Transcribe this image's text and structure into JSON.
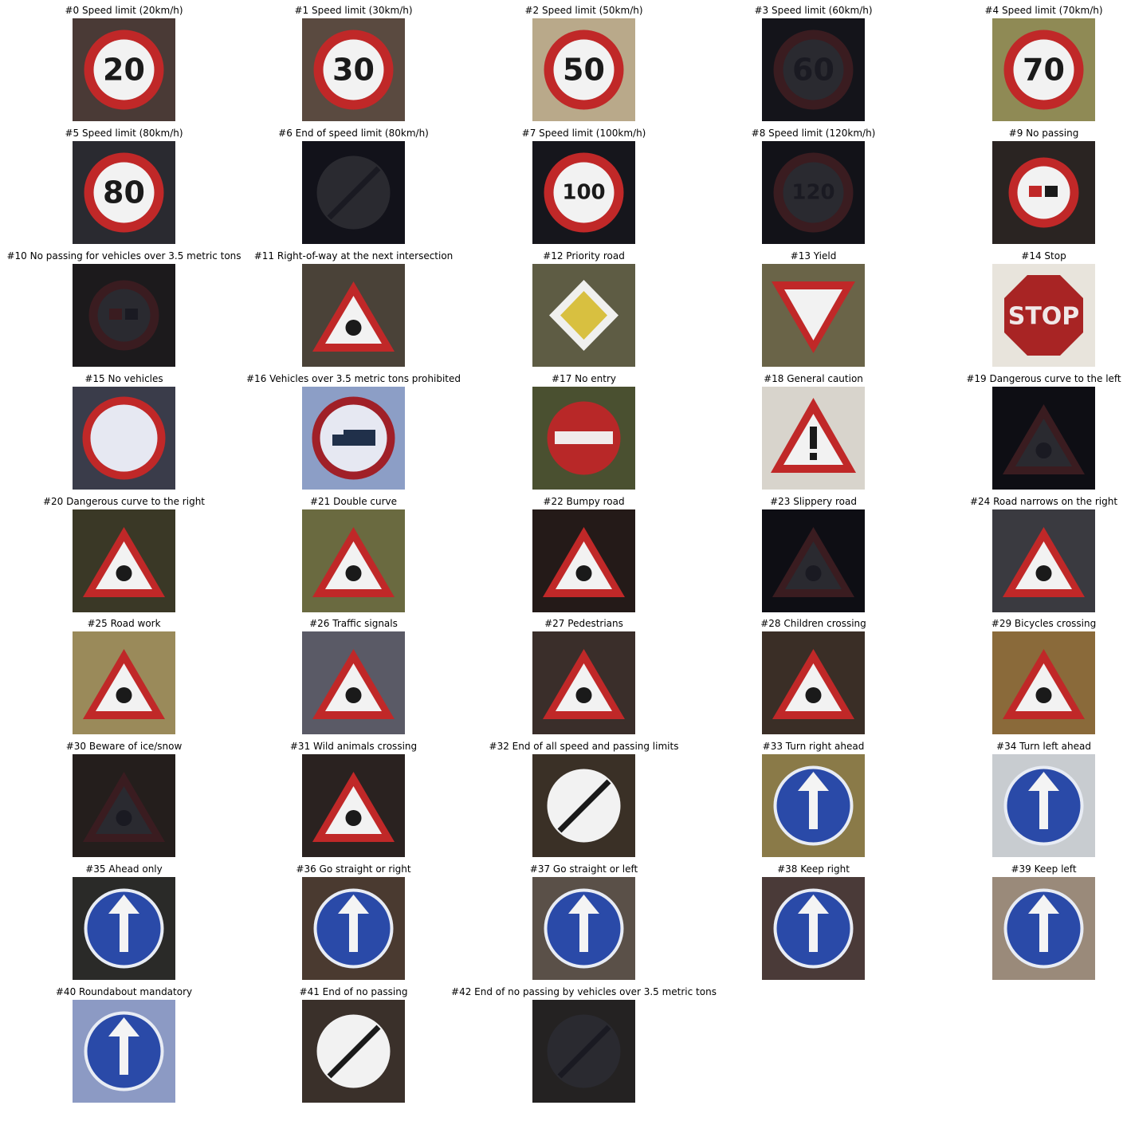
{
  "figure": {
    "cols": 5,
    "signs": [
      {
        "label": "#0 Speed limit (20km/h)",
        "bg": "#4a3a36",
        "kind": "speed",
        "text": "20",
        "dim": false,
        "icon": "speed-limit-20-sign-icon"
      },
      {
        "label": "#1 Speed limit (30km/h)",
        "bg": "#5a4a40",
        "kind": "speed",
        "text": "30",
        "dim": false,
        "icon": "speed-limit-30-sign-icon"
      },
      {
        "label": "#2 Speed limit (50km/h)",
        "bg": "#b9a98a",
        "kind": "speed",
        "text": "50",
        "dim": false,
        "icon": "speed-limit-50-sign-icon"
      },
      {
        "label": "#3 Speed limit (60km/h)",
        "bg": "#14141a",
        "kind": "speed",
        "text": "60",
        "dim": true,
        "icon": "speed-limit-60-sign-icon"
      },
      {
        "label": "#4 Speed limit (70km/h)",
        "bg": "#8f8a55",
        "kind": "speed",
        "text": "70",
        "dim": false,
        "icon": "speed-limit-70-sign-icon"
      },
      {
        "label": "#5 Speed limit (80km/h)",
        "bg": "#2a2a30",
        "kind": "speed",
        "text": "80",
        "dim": false,
        "icon": "speed-limit-80-sign-icon"
      },
      {
        "label": "#6 End of speed limit (80km/h)",
        "bg": "#12121a",
        "kind": "end",
        "text": "",
        "dim": true,
        "icon": "end-speed-limit-80-sign-icon"
      },
      {
        "label": "#7 Speed limit (100km/h)",
        "bg": "#16161c",
        "kind": "speed",
        "text": "100",
        "dim": false,
        "icon": "speed-limit-100-sign-icon"
      },
      {
        "label": "#8 Speed limit (120km/h)",
        "bg": "#121218",
        "kind": "speed",
        "text": "120",
        "dim": true,
        "icon": "speed-limit-120-sign-icon"
      },
      {
        "label": "#9 No passing",
        "bg": "#2a2422",
        "kind": "prohibit",
        "text": "",
        "dim": false,
        "icon": "no-passing-sign-icon"
      },
      {
        "label": "#10 No passing for vehicles over 3.5 metric tons",
        "bg": "#1c1a1c",
        "kind": "prohibit",
        "text": "",
        "dim": true,
        "icon": "no-passing-trucks-sign-icon"
      },
      {
        "label": "#11 Right-of-way at the next intersection",
        "bg": "#4a4238",
        "kind": "triangle",
        "text": "",
        "dim": false,
        "icon": "right-of-way-sign-icon"
      },
      {
        "label": "#12 Priority road",
        "bg": "#5e5c44",
        "kind": "diamond",
        "text": "",
        "dim": false,
        "icon": "priority-road-sign-icon"
      },
      {
        "label": "#13 Yield",
        "bg": "#6a6448",
        "kind": "yield",
        "text": "",
        "dim": false,
        "icon": "yield-sign-icon"
      },
      {
        "label": "#14 Stop",
        "bg": "#e8e4dc",
        "kind": "stop",
        "text": "STOP",
        "dim": false,
        "icon": "stop-sign-icon"
      },
      {
        "label": "#15 No vehicles",
        "bg": "#3a3c4a",
        "kind": "ring",
        "text": "",
        "dim": false,
        "icon": "no-vehicles-sign-icon"
      },
      {
        "label": "#16 Vehicles over 3.5 metric tons prohibited",
        "bg": "#8c9ec6",
        "kind": "truck",
        "text": "",
        "dim": false,
        "icon": "no-trucks-sign-icon"
      },
      {
        "label": "#17 No entry",
        "bg": "#4a5030",
        "kind": "noentry",
        "text": "",
        "dim": false,
        "icon": "no-entry-sign-icon"
      },
      {
        "label": "#18 General caution",
        "bg": "#d8d4cc",
        "kind": "caution",
        "text": "",
        "dim": false,
        "icon": "general-caution-sign-icon"
      },
      {
        "label": "#19 Dangerous curve to the left",
        "bg": "#0e0e14",
        "kind": "triangle",
        "text": "",
        "dim": true,
        "icon": "curve-left-sign-icon"
      },
      {
        "label": "#20 Dangerous curve to the right",
        "bg": "#3a3826",
        "kind": "triangle",
        "text": "",
        "dim": false,
        "icon": "curve-right-sign-icon"
      },
      {
        "label": "#21 Double curve",
        "bg": "#6a6a40",
        "kind": "triangle",
        "text": "",
        "dim": false,
        "icon": "double-curve-sign-icon"
      },
      {
        "label": "#22 Bumpy road",
        "bg": "#241a18",
        "kind": "triangle",
        "text": "",
        "dim": false,
        "icon": "bumpy-road-sign-icon"
      },
      {
        "label": "#23 Slippery road",
        "bg": "#0e0e14",
        "kind": "triangle",
        "text": "",
        "dim": true,
        "icon": "slippery-road-sign-icon"
      },
      {
        "label": "#24 Road narrows on the right",
        "bg": "#3a3a40",
        "kind": "triangle",
        "text": "",
        "dim": false,
        "icon": "road-narrows-sign-icon"
      },
      {
        "label": "#25 Road work",
        "bg": "#9a8a5a",
        "kind": "triangle",
        "text": "",
        "dim": false,
        "icon": "road-work-sign-icon"
      },
      {
        "label": "#26 Traffic signals",
        "bg": "#5a5a66",
        "kind": "triangle",
        "text": "",
        "dim": false,
        "icon": "traffic-signals-sign-icon"
      },
      {
        "label": "#27 Pedestrians",
        "bg": "#3a2e2a",
        "kind": "triangle",
        "text": "",
        "dim": false,
        "icon": "pedestrians-sign-icon"
      },
      {
        "label": "#28 Children crossing",
        "bg": "#3a2e26",
        "kind": "triangle",
        "text": "",
        "dim": false,
        "icon": "children-crossing-sign-icon"
      },
      {
        "label": "#29 Bicycles crossing",
        "bg": "#8a6a3a",
        "kind": "triangle",
        "text": "",
        "dim": false,
        "icon": "bicycles-crossing-sign-icon"
      },
      {
        "label": "#30 Beware of ice/snow",
        "bg": "#241e1c",
        "kind": "triangle",
        "text": "",
        "dim": true,
        "icon": "ice-snow-sign-icon"
      },
      {
        "label": "#31 Wild animals crossing",
        "bg": "#2a2220",
        "kind": "triangle",
        "text": "",
        "dim": false,
        "icon": "wild-animals-sign-icon"
      },
      {
        "label": "#32 End of all speed and passing limits",
        "bg": "#3a3026",
        "kind": "end",
        "text": "",
        "dim": false,
        "icon": "end-all-limits-sign-icon"
      },
      {
        "label": "#33 Turn right ahead",
        "bg": "#8a7a48",
        "kind": "blue",
        "text": "",
        "dim": false,
        "icon": "turn-right-sign-icon"
      },
      {
        "label": "#34 Turn left ahead",
        "bg": "#c8ccd0",
        "kind": "blue",
        "text": "",
        "dim": false,
        "icon": "turn-left-sign-icon"
      },
      {
        "label": "#35 Ahead only",
        "bg": "#2a2a28",
        "kind": "blue",
        "text": "",
        "dim": false,
        "icon": "ahead-only-sign-icon"
      },
      {
        "label": "#36 Go straight or right",
        "bg": "#4a3a30",
        "kind": "blue",
        "text": "",
        "dim": false,
        "icon": "straight-or-right-sign-icon"
      },
      {
        "label": "#37 Go straight or left",
        "bg": "#5a5048",
        "kind": "blue",
        "text": "",
        "dim": false,
        "icon": "straight-or-left-sign-icon"
      },
      {
        "label": "#38 Keep right",
        "bg": "#4a3a38",
        "kind": "blue",
        "text": "",
        "dim": false,
        "icon": "keep-right-sign-icon"
      },
      {
        "label": "#39 Keep left",
        "bg": "#9a8a7a",
        "kind": "blue",
        "text": "",
        "dim": false,
        "icon": "keep-left-sign-icon"
      },
      {
        "label": "#40 Roundabout mandatory",
        "bg": "#8c9ac4",
        "kind": "blue",
        "text": "",
        "dim": false,
        "icon": "roundabout-sign-icon"
      },
      {
        "label": "#41 End of no passing",
        "bg": "#3a302a",
        "kind": "end",
        "text": "",
        "dim": false,
        "icon": "end-no-passing-sign-icon"
      },
      {
        "label": "#42 End of no passing by vehicles over 3.5 metric tons",
        "bg": "#242222",
        "kind": "end",
        "text": "",
        "dim": true,
        "icon": "end-no-passing-trucks-sign-icon"
      }
    ]
  }
}
